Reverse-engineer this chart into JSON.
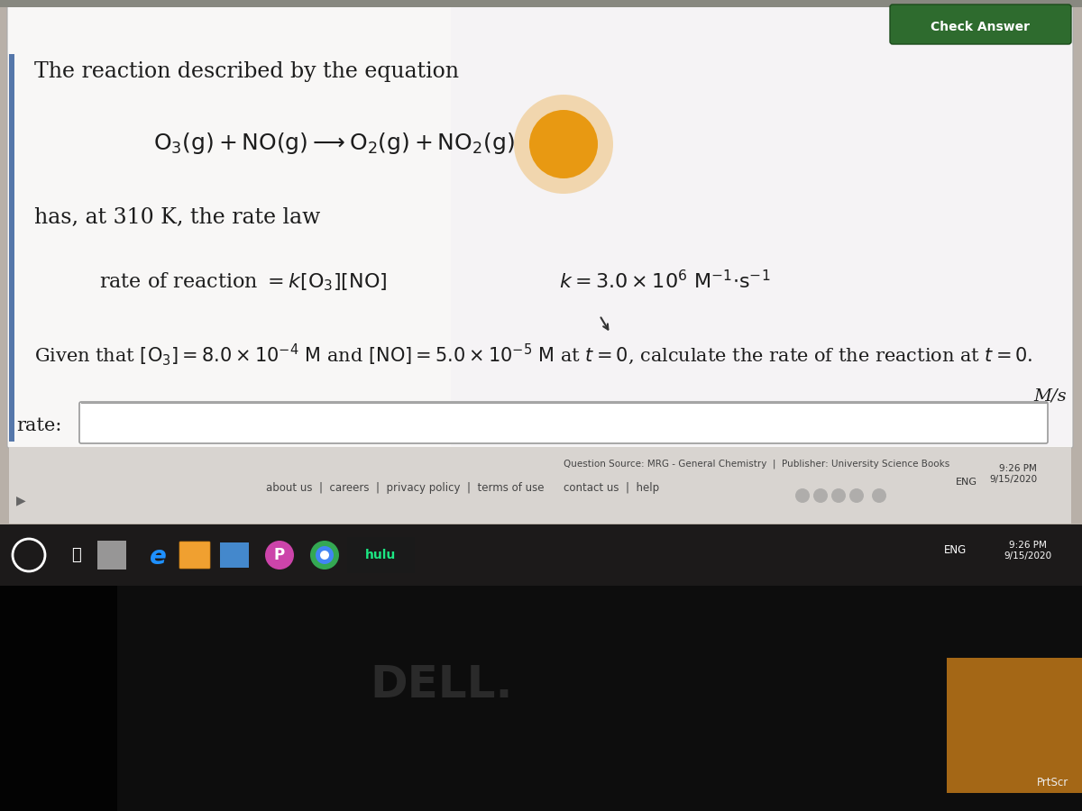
{
  "outer_bg": "#b8b0a8",
  "content_bg": "#f0eeec",
  "white_bg": "#f8f7f6",
  "text_color": "#1c1c1c",
  "taskbar_color": "#1c1a1a",
  "title_text": "The reaction described by the equation",
  "has_at_text": "has, at 310 K, the rate law",
  "ms_label": "M/s",
  "rate_label": "rate:",
  "check_answer": "Check Answer",
  "question_source": "Question Source: MRG - General Chemistry  |  Publisher: University Science Books",
  "footer_links_left": "about us",
  "footer_links": "about us  |  careers  |  privacy policy  |  terms of use  |  contact us  |  help",
  "footer_links2": "contact us    help",
  "time_text": "9:26 PM\n9/15/2020",
  "eng_text": "ENG",
  "dell_text": "DELL.",
  "orange_color": "#e8960a",
  "btn_color": "#2e6b2e",
  "accent_color": "#5577aa",
  "left_arrow_color": "#555555",
  "footer_bg": "#e0dcd8",
  "taskbar_icons_bg": "#2a2828"
}
